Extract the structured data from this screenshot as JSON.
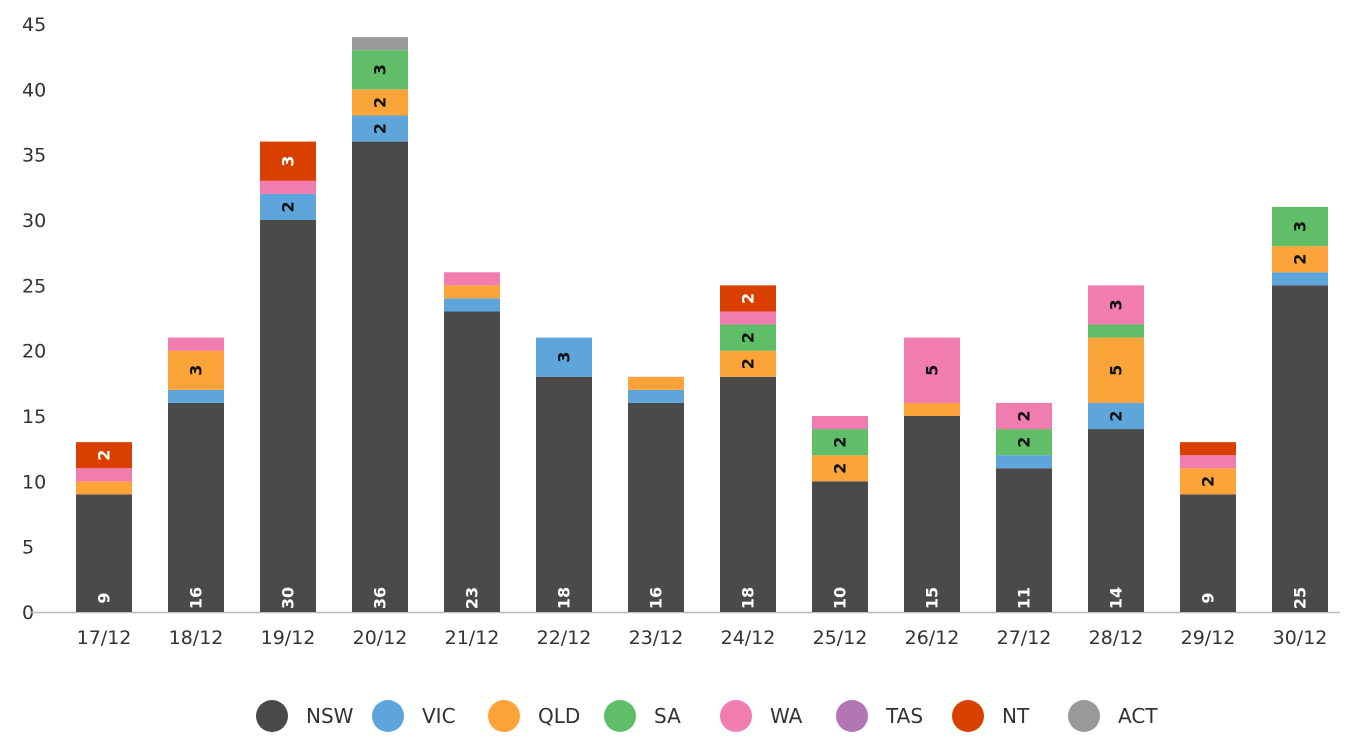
{
  "chart_data": {
    "type": "bar",
    "stacked": true,
    "categories": [
      "17/12",
      "18/12",
      "19/12",
      "20/12",
      "21/12",
      "22/12",
      "23/12",
      "24/12",
      "25/12",
      "26/12",
      "27/12",
      "28/12",
      "29/12",
      "30/12"
    ],
    "ylim": [
      0,
      45
    ],
    "yticks": [
      0,
      5,
      10,
      15,
      20,
      25,
      30,
      35,
      40,
      45
    ],
    "grid": false,
    "legend_position": "bottom",
    "series": [
      {
        "name": "NSW",
        "color": "#4a4a4a",
        "label_color": "#ffffff",
        "values": [
          9,
          16,
          30,
          36,
          23,
          18,
          16,
          18,
          10,
          15,
          11,
          14,
          9,
          25
        ]
      },
      {
        "name": "VIC",
        "color": "#5da5da",
        "label_color": "#111111",
        "values": [
          0,
          1,
          2,
          2,
          1,
          3,
          1,
          0,
          0,
          0,
          1,
          2,
          0,
          1
        ]
      },
      {
        "name": "QLD",
        "color": "#faa43a",
        "label_color": "#111111",
        "values": [
          1,
          3,
          0,
          2,
          1,
          0,
          1,
          2,
          2,
          1,
          0,
          5,
          2,
          2
        ]
      },
      {
        "name": "SA",
        "color": "#60bd68",
        "label_color": "#111111",
        "values": [
          0,
          0,
          0,
          3,
          0,
          0,
          0,
          2,
          2,
          0,
          2,
          1,
          0,
          3
        ]
      },
      {
        "name": "WA",
        "color": "#f17cb0",
        "label_color": "#111111",
        "values": [
          1,
          1,
          1,
          0,
          1,
          0,
          0,
          1,
          1,
          5,
          2,
          3,
          1,
          0
        ]
      },
      {
        "name": "TAS",
        "color": "#b276b2",
        "label_color": "#111111",
        "values": [
          0,
          0,
          0,
          0,
          0,
          0,
          0,
          0,
          0,
          0,
          0,
          0,
          0,
          0
        ]
      },
      {
        "name": "NT",
        "color": "#d94000",
        "label_color": "#ffffff",
        "values": [
          2,
          0,
          3,
          0,
          0,
          0,
          0,
          2,
          0,
          0,
          0,
          0,
          1,
          0
        ]
      },
      {
        "name": "ACT",
        "color": "#999999",
        "label_color": "#111111",
        "values": [
          0,
          0,
          0,
          1,
          0,
          0,
          0,
          0,
          0,
          0,
          0,
          0,
          0,
          0
        ]
      }
    ]
  }
}
